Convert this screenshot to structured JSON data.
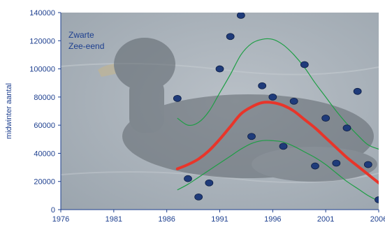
{
  "chart_data": {
    "type": "scatter",
    "title": "",
    "ylabel": "midwinter aantal",
    "xlabel": "",
    "xlim": [
      1976,
      2006
    ],
    "ylim": [
      0,
      140000
    ],
    "x_ticks": [
      1976,
      1981,
      1986,
      1991,
      1996,
      2001,
      2006
    ],
    "y_ticks": [
      0,
      20000,
      40000,
      60000,
      80000,
      100000,
      120000,
      140000
    ],
    "y_tick_labels": [
      "0",
      "20000",
      "40000",
      "60000",
      "80000",
      "100000",
      "120000",
      "140000"
    ],
    "annotation": [
      "Zwarte",
      "Zee-eend"
    ],
    "colors": {
      "points": "#1f3b7a",
      "trend": "#e8352a",
      "band": "#1e9e45",
      "text": "#1d3f8f",
      "background_water": "#aab3bc"
    },
    "observations": {
      "x": [
        1987,
        1988,
        1989,
        1990,
        1991,
        1992,
        1993,
        1994,
        1995,
        1996,
        1997,
        1998,
        1999,
        2000,
        2001,
        2002,
        2003,
        2004,
        2005,
        2006
      ],
      "y": [
        79000,
        22000,
        9000,
        19000,
        100000,
        123000,
        138000,
        52000,
        88000,
        80000,
        45000,
        77000,
        103000,
        31000,
        65000,
        33000,
        58000,
        84000,
        32000,
        7000
      ]
    },
    "trend": {
      "x": [
        1987,
        1988,
        1989,
        1990,
        1991,
        1992,
        1993,
        1994,
        1995,
        1996,
        1997,
        1998,
        1999,
        2000,
        2001,
        2002,
        2003,
        2004,
        2005,
        2006
      ],
      "y": [
        29000,
        32000,
        36000,
        42000,
        50000,
        59000,
        68000,
        73000,
        76000,
        76000,
        74000,
        70000,
        64000,
        58000,
        51000,
        44000,
        37000,
        31000,
        25000,
        19000
      ]
    },
    "upper_band": {
      "x": [
        1987,
        1988,
        1989,
        1990,
        1991,
        1992,
        1993,
        1994,
        1995,
        1996,
        1997,
        1998,
        1999,
        2000,
        2001,
        2002,
        2003,
        2004,
        2005,
        2006
      ],
      "y": [
        65000,
        60000,
        62000,
        70000,
        83000,
        96000,
        110000,
        118000,
        121000,
        121000,
        117000,
        110000,
        101000,
        90000,
        80000,
        70000,
        61000,
        53000,
        46000,
        43000
      ]
    },
    "lower_band": {
      "x": [
        1987,
        1988,
        1989,
        1990,
        1991,
        1992,
        1993,
        1994,
        1995,
        1996,
        1997,
        1998,
        1999,
        2000,
        2001,
        2002,
        2003,
        2004,
        2005,
        2006
      ],
      "y": [
        14000,
        18000,
        23000,
        28000,
        33000,
        38000,
        43000,
        47000,
        49000,
        49000,
        48000,
        45000,
        41000,
        37000,
        32000,
        26000,
        20000,
        15000,
        10000,
        6000
      ]
    }
  }
}
